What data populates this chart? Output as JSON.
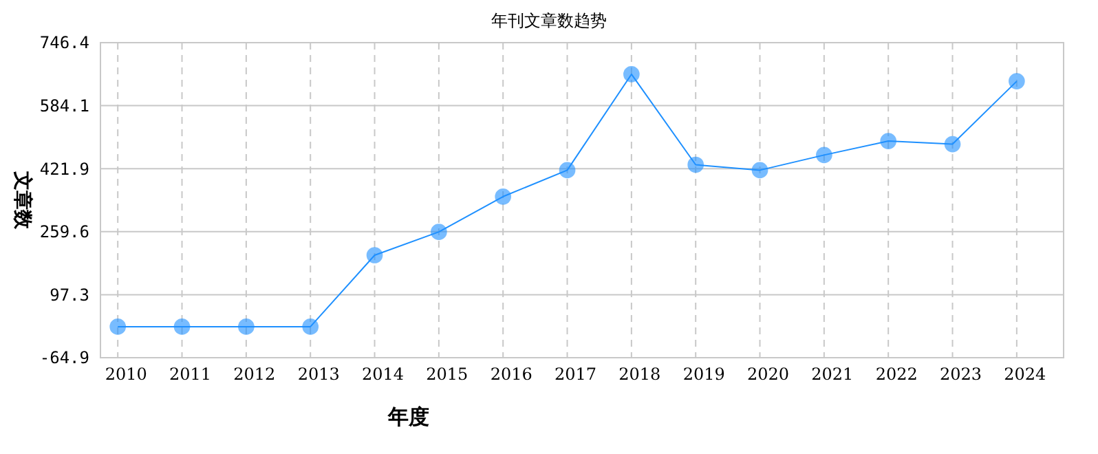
{
  "chart_data": {
    "type": "line",
    "title": "年刊文章数趋势",
    "xlabel": "年度",
    "ylabel": "文章数",
    "categories": [
      "2010",
      "2011",
      "2012",
      "2013",
      "2014",
      "2015",
      "2016",
      "2017",
      "2018",
      "2019",
      "2020",
      "2021",
      "2022",
      "2023",
      "2024"
    ],
    "series": [
      {
        "color": "#1e90ff",
        "values": [
          15,
          15,
          15,
          15,
          199,
          259,
          350,
          418,
          665,
          432,
          418,
          457,
          493,
          485,
          647
        ]
      }
    ],
    "ylim": [
      -64.9,
      746.4
    ],
    "yticks": [
      -64.9,
      97.3,
      259.6,
      421.9,
      584.1,
      746.4
    ],
    "grid": true,
    "marker": "circle",
    "line_style": "solid"
  }
}
